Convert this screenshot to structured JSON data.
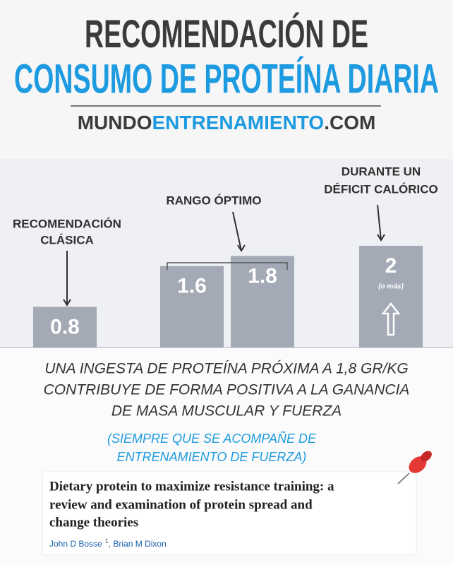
{
  "header": {
    "title_line1": "RECOMENDACIÓN DE",
    "title_line2": "CONSUMO DE PROTEÍNA DIARIA",
    "site": [
      "MUNDO",
      "ENTRENAMIENTO",
      ".COM"
    ]
  },
  "chart_data": {
    "type": "bar",
    "values": [
      0.8,
      1.6,
      1.8,
      2
    ],
    "color": "#a3aab6",
    "annotations": [
      [
        "RECOMENDACIÓN",
        "CLÁSICA"
      ],
      [
        "RANGO ÓPTIMO"
      ],
      [
        "DURANTE UN",
        "DÉFICIT CALÓRICO"
      ]
    ],
    "bar_note": "(o más)"
  },
  "conclusion": {
    "lines": [
      "UNA INGESTA DE PROTEÍNA PRÓXIMA A 1,8 GR/KG",
      "CONTRIBUYE DE FORMA POSITIVA A LA GANANCIA",
      "DE MASA MUSCULAR Y FUERZA"
    ],
    "note": [
      "(SIEMPRE QUE SE ACOMPAÑE DE",
      "ENTRENAMIENTO DE FUERZA)"
    ]
  },
  "citation": {
    "title": [
      "Dietary protein to maximize resistance training: a",
      "review and examination of protein spread and",
      "change theories"
    ],
    "authors": [
      "John D Bosse",
      "1",
      ", Brian M Dixon"
    ]
  }
}
